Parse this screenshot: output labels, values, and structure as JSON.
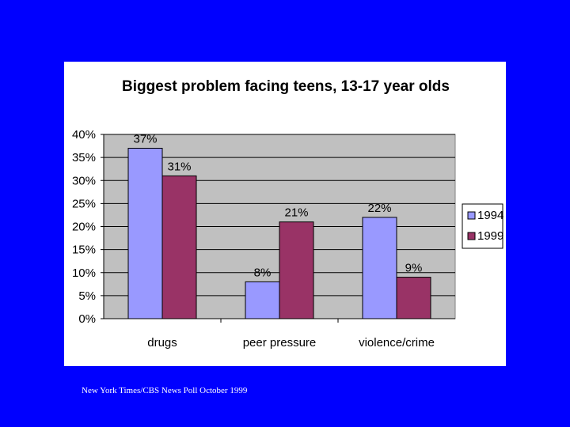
{
  "chart_data": {
    "type": "bar",
    "title": "Biggest problem facing teens, 13-17 year olds",
    "categories": [
      "drugs",
      "peer pressure",
      "violence/crime"
    ],
    "series": [
      {
        "name": "1994",
        "values": [
          37,
          8,
          22
        ],
        "labels": [
          "37%",
          "8%",
          "22%"
        ],
        "color": "#9999ff"
      },
      {
        "name": "1999",
        "values": [
          31,
          21,
          9
        ],
        "labels": [
          "31%",
          "21%",
          "9%"
        ],
        "color": "#993366"
      }
    ],
    "ylim": [
      0,
      40
    ],
    "yticks": [
      0,
      5,
      10,
      15,
      20,
      25,
      30,
      35,
      40
    ],
    "ytick_labels": [
      "0%",
      "5%",
      "10%",
      "15%",
      "20%",
      "25%",
      "30%",
      "35%",
      "40%"
    ],
    "xlabel": "",
    "ylabel": "",
    "grid": true,
    "legend_position": "right",
    "plot_background": "#c0c0c0"
  },
  "colors": {
    "slide_background": "#0000ff",
    "panel_background": "#ffffff"
  },
  "source_note": "New York Times/CBS News Poll October 1999"
}
